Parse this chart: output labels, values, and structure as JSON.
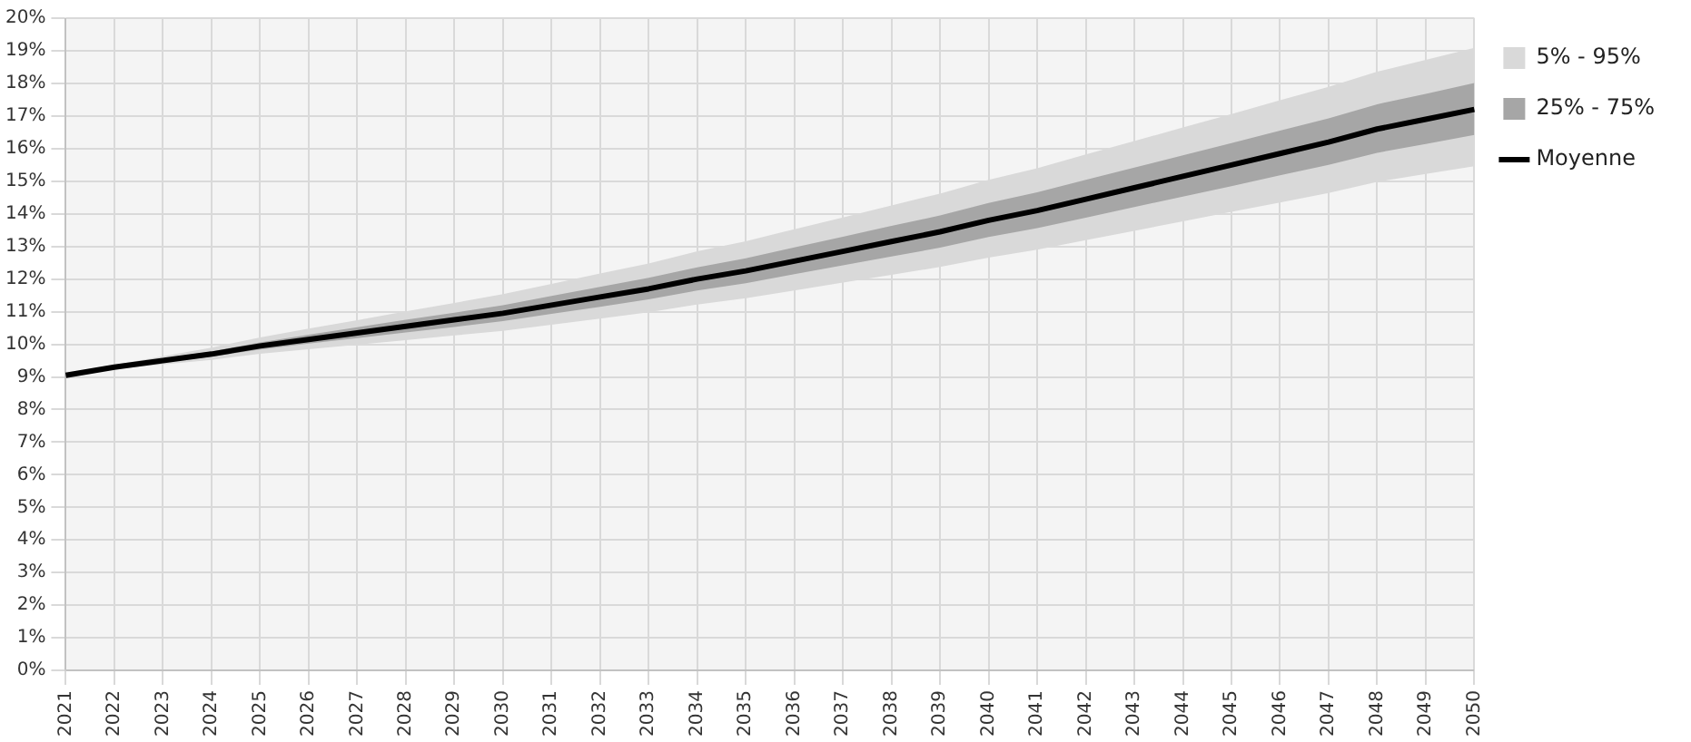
{
  "chart_data": {
    "type": "line",
    "categories": [
      "2021",
      "2022",
      "2023",
      "2024",
      "2025",
      "2026",
      "2027",
      "2028",
      "2029",
      "2030",
      "2031",
      "2032",
      "2033",
      "2034",
      "2035",
      "2036",
      "2037",
      "2038",
      "2039",
      "2040",
      "2041",
      "2042",
      "2043",
      "2044",
      "2045",
      "2046",
      "2047",
      "2048",
      "2049",
      "2050"
    ],
    "series": [
      {
        "type": "area",
        "name": "5% - 95%",
        "color": "#d9d9d9",
        "values": [
          null,
          null,
          null,
          null,
          null,
          null,
          null,
          null,
          null,
          null,
          null,
          null,
          null,
          null,
          null,
          null,
          null,
          null,
          null,
          null,
          null,
          null,
          null,
          null,
          null,
          null,
          null,
          null,
          null,
          null
        ],
        "lower": [
          9.05,
          9.24,
          9.38,
          9.52,
          9.71,
          9.85,
          9.99,
          10.13,
          10.27,
          10.41,
          10.6,
          10.79,
          10.98,
          11.22,
          11.41,
          11.65,
          11.89,
          12.13,
          12.37,
          12.66,
          12.9,
          13.19,
          13.48,
          13.77,
          14.06,
          14.35,
          14.64,
          14.98,
          15.22,
          15.46
        ],
        "upper": [
          9.05,
          9.37,
          9.63,
          9.9,
          10.21,
          10.48,
          10.74,
          11.01,
          11.27,
          11.54,
          11.85,
          12.17,
          12.48,
          12.85,
          13.16,
          13.53,
          13.89,
          14.26,
          14.62,
          15.04,
          15.4,
          15.82,
          16.23,
          16.65,
          17.06,
          17.48,
          17.89,
          18.36,
          18.72,
          19.09
        ]
      },
      {
        "type": "area",
        "name": "25% - 75%",
        "color": "#a6a6a6",
        "values": [
          null,
          null,
          null,
          null,
          null,
          null,
          null,
          null,
          null,
          null,
          null,
          null,
          null,
          null,
          null,
          null,
          null,
          null,
          null,
          null,
          null,
          null,
          null,
          null,
          null,
          null,
          null,
          null,
          null,
          null
        ],
        "lower": [
          9.05,
          9.27,
          9.45,
          9.62,
          9.84,
          10.02,
          10.19,
          10.36,
          10.53,
          10.71,
          10.93,
          11.15,
          11.38,
          11.65,
          11.87,
          12.15,
          12.42,
          12.69,
          12.96,
          13.29,
          13.56,
          13.88,
          14.21,
          14.53,
          14.85,
          15.18,
          15.5,
          15.87,
          16.14,
          16.42
        ],
        "upper": [
          9.05,
          9.33,
          9.56,
          9.78,
          10.06,
          10.29,
          10.52,
          10.75,
          10.97,
          11.2,
          11.48,
          11.76,
          12.04,
          12.36,
          12.64,
          12.97,
          13.3,
          13.63,
          13.95,
          14.33,
          14.66,
          15.04,
          15.42,
          15.79,
          16.17,
          16.55,
          16.93,
          17.36,
          17.68,
          18.01
        ]
      },
      {
        "type": "line",
        "name": "Moyenne",
        "color": "#000000",
        "values": [
          9.05,
          9.3,
          9.5,
          9.7,
          9.95,
          10.15,
          10.35,
          10.55,
          10.75,
          10.95,
          11.2,
          11.45,
          11.7,
          12.0,
          12.25,
          12.55,
          12.85,
          13.15,
          13.45,
          13.8,
          14.1,
          14.45,
          14.8,
          15.15,
          15.5,
          15.85,
          16.2,
          16.6,
          16.9,
          17.2
        ]
      }
    ],
    "ylim": [
      0,
      20
    ],
    "yticks": [
      {
        "value": 0,
        "label": "0%"
      },
      {
        "value": 1,
        "label": "1%"
      },
      {
        "value": 2,
        "label": "2%"
      },
      {
        "value": 3,
        "label": "3%"
      },
      {
        "value": 4,
        "label": "4%"
      },
      {
        "value": 5,
        "label": "5%"
      },
      {
        "value": 6,
        "label": "6%"
      },
      {
        "value": 7,
        "label": "7%"
      },
      {
        "value": 8,
        "label": "8%"
      },
      {
        "value": 9,
        "label": "9%"
      },
      {
        "value": 10,
        "label": "10%"
      },
      {
        "value": 11,
        "label": "11%"
      },
      {
        "value": 12,
        "label": "12%"
      },
      {
        "value": 13,
        "label": "13%"
      },
      {
        "value": 14,
        "label": "14%"
      },
      {
        "value": 15,
        "label": "15%"
      },
      {
        "value": 16,
        "label": "16%"
      },
      {
        "value": 17,
        "label": "17%"
      },
      {
        "value": 18,
        "label": "18%"
      },
      {
        "value": 19,
        "label": "19%"
      },
      {
        "value": 20,
        "label": "20%"
      }
    ],
    "grid": true,
    "legend": "top right",
    "marker": "none",
    "line_style": "solid"
  }
}
